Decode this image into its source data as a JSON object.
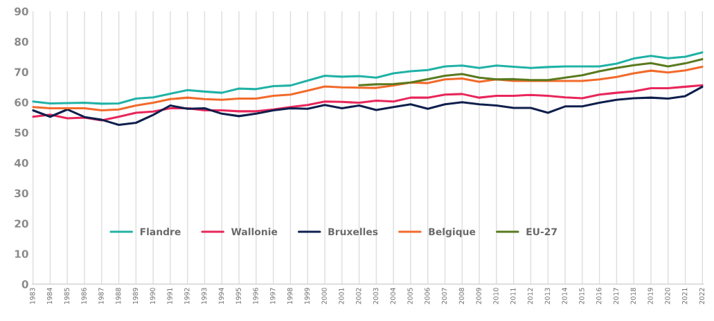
{
  "chart_data": {
    "type": "line",
    "categories": [
      "1983",
      "1984",
      "1985",
      "1986",
      "1987",
      "1988",
      "1989",
      "1990",
      "1991",
      "1992",
      "1993",
      "1994",
      "1995",
      "1996",
      "1997",
      "1998",
      "1999",
      "2000",
      "2001",
      "2002",
      "2003",
      "2004",
      "2005",
      "2006",
      "2007",
      "2008",
      "2009",
      "2010",
      "2011",
      "2012",
      "2013",
      "2014",
      "2015",
      "2016",
      "2017",
      "2018",
      "2019",
      "2020",
      "2021",
      "2022"
    ],
    "series": [
      {
        "name": "Flandre",
        "color": "#20b2a6",
        "values": [
          60.2,
          59.6,
          59.7,
          59.8,
          59.5,
          59.6,
          61.2,
          61.6,
          62.8,
          64.0,
          63.5,
          63.1,
          64.5,
          64.3,
          65.3,
          65.5,
          67.1,
          68.7,
          68.4,
          68.6,
          68.1,
          69.5,
          70.2,
          70.6,
          71.8,
          72.1,
          71.3,
          72.1,
          71.7,
          71.3,
          71.6,
          71.8,
          71.8,
          71.8,
          72.7,
          74.4,
          75.3,
          74.5,
          75.0,
          76.4
        ]
      },
      {
        "name": "Wallonie",
        "color": "#e8265a",
        "values": [
          55.2,
          55.9,
          54.7,
          54.9,
          54.0,
          55.2,
          56.5,
          56.9,
          58.0,
          58.0,
          57.3,
          57.3,
          57.0,
          57.0,
          57.6,
          58.4,
          59.1,
          60.2,
          60.1,
          59.8,
          60.5,
          60.2,
          61.5,
          61.5,
          62.5,
          62.7,
          61.5,
          62.1,
          62.1,
          62.4,
          62.1,
          61.6,
          61.3,
          62.5,
          63.1,
          63.6,
          64.6,
          64.6,
          65.1,
          65.6
        ]
      },
      {
        "name": "Bruxelles",
        "color": "#0f1f4d",
        "values": [
          57.3,
          55.2,
          57.6,
          55.1,
          54.2,
          52.5,
          53.2,
          55.8,
          58.9,
          57.8,
          58.0,
          56.2,
          55.4,
          56.2,
          57.3,
          58.0,
          57.8,
          59.1,
          58.0,
          58.9,
          57.4,
          58.4,
          59.3,
          57.8,
          59.3,
          60.0,
          59.3,
          58.9,
          58.1,
          58.1,
          56.5,
          58.6,
          58.6,
          59.8,
          60.8,
          61.3,
          61.5,
          61.2,
          62.0,
          65.1
        ]
      },
      {
        "name": "Belgique",
        "color": "#f26a2a",
        "values": [
          58.4,
          58.0,
          58.0,
          58.0,
          57.3,
          57.6,
          58.9,
          59.8,
          61.0,
          61.5,
          61.0,
          60.8,
          61.2,
          61.2,
          62.1,
          62.5,
          63.8,
          65.2,
          64.9,
          64.8,
          64.7,
          65.5,
          66.5,
          66.3,
          67.5,
          67.8,
          66.7,
          67.5,
          67.0,
          67.0,
          67.0,
          67.0,
          67.0,
          67.5,
          68.3,
          69.5,
          70.4,
          69.8,
          70.5,
          71.7
        ]
      },
      {
        "name": "EU-27",
        "color": "#5a7a1e",
        "values": [
          null,
          null,
          null,
          null,
          null,
          null,
          null,
          null,
          null,
          null,
          null,
          null,
          null,
          null,
          null,
          null,
          null,
          null,
          null,
          65.6,
          65.9,
          66.0,
          66.5,
          67.6,
          68.7,
          69.3,
          68.1,
          67.5,
          67.6,
          67.3,
          67.3,
          68.1,
          68.9,
          70.2,
          71.3,
          72.2,
          72.9,
          71.8,
          72.8,
          74.2
        ]
      }
    ],
    "ylim": [
      0,
      90
    ],
    "yticks": [
      0,
      10,
      20,
      30,
      40,
      50,
      60,
      70,
      80,
      90
    ],
    "grid": "x",
    "legend": "bottom"
  }
}
